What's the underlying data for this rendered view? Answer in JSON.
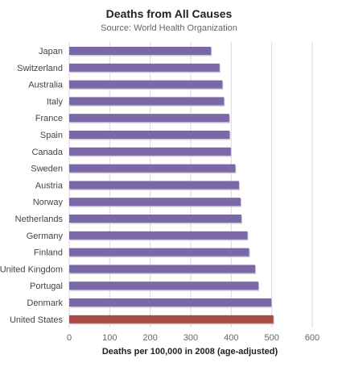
{
  "chart_data": {
    "type": "bar",
    "orientation": "horizontal",
    "title": "Deaths from All Causes",
    "subtitle": "Source: World Health Organization",
    "xlabel": "Deaths per 100,000 in 2008 (age-adjusted)",
    "ylabel": "",
    "xlim": [
      0,
      600
    ],
    "xticks": [
      "0",
      "100",
      "200",
      "300",
      "400",
      "500",
      "600"
    ],
    "grid": true,
    "legend": "none",
    "categories": [
      "Japan",
      "Switzerland",
      "Australia",
      "Italy",
      "France",
      "Spain",
      "Canada",
      "Sweden",
      "Austria",
      "Norway",
      "Netherlands",
      "Germany",
      "Finland",
      "United Kingdom",
      "Portugal",
      "Denmark",
      "United States"
    ],
    "values": [
      350,
      371,
      378,
      382,
      395,
      396,
      399,
      410,
      419,
      423,
      425,
      440,
      444,
      459,
      467,
      499,
      504
    ],
    "colors": {
      "bar": "#7b68a6",
      "highlight": "#a84b45",
      "highlight_category": "United States",
      "grid": "#d9d9d9",
      "axis_text": "#444444",
      "tick_text": "#666666"
    }
  }
}
